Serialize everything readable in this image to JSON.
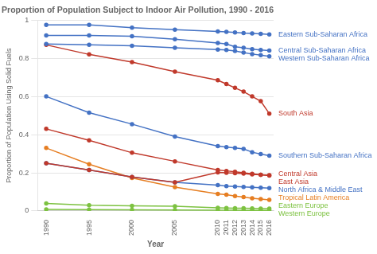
{
  "chart_data": {
    "type": "line",
    "title": "Proportion of Population Subject to Indoor Air Pollution, 1990 - 2016",
    "xlabel": "Year",
    "ylabel": "Proportion of Population Using Solid Fuels",
    "x": [
      1990,
      1995,
      2000,
      2005,
      2010,
      2011,
      2012,
      2013,
      2014,
      2015,
      2016
    ],
    "series": [
      {
        "name": "Eastern Sub-Saharan Africa",
        "color": "#4472C4",
        "values": [
          0.975,
          0.975,
          0.96,
          0.95,
          0.94,
          0.938,
          0.935,
          0.932,
          0.93,
          0.928,
          0.925
        ]
      },
      {
        "name": "Central Sub-Saharan Africa",
        "color": "#4472C4",
        "values": [
          0.92,
          0.92,
          0.915,
          0.9,
          0.88,
          0.875,
          0.86,
          0.855,
          0.848,
          0.843,
          0.84
        ]
      },
      {
        "name": "Western Sub-Saharan Africa",
        "color": "#4472C4",
        "values": [
          0.875,
          0.87,
          0.865,
          0.855,
          0.845,
          0.843,
          0.838,
          0.83,
          0.822,
          0.816,
          0.81
        ]
      },
      {
        "name": "South Asia",
        "color": "#C0392B",
        "values": [
          0.87,
          0.82,
          0.78,
          0.73,
          0.685,
          0.665,
          0.645,
          0.625,
          0.6,
          0.575,
          0.51
        ]
      },
      {
        "name": "East Asia",
        "color": "#C0392B",
        "values": [
          0.43,
          0.37,
          0.305,
          0.26,
          0.215,
          0.21,
          0.205,
          0.2,
          0.195,
          0.19,
          0.185
        ]
      },
      {
        "name": "Southern Sub-Saharan Africa",
        "color": "#4472C4",
        "values": [
          0.6,
          0.515,
          0.455,
          0.39,
          0.34,
          0.335,
          0.33,
          0.325,
          0.308,
          0.298,
          0.29
        ]
      },
      {
        "name": "Central Asia",
        "color": "#C0392B",
        "values": [
          0.25,
          0.215,
          0.178,
          0.15,
          0.202,
          0.2,
          0.198,
          0.196,
          0.192,
          0.19,
          0.188
        ]
      },
      {
        "name": "North Africa & Middle East",
        "color": "#4472C4",
        "values": [
          0.25,
          0.215,
          0.178,
          0.15,
          0.135,
          0.13,
          0.128,
          0.126,
          0.124,
          0.122,
          0.12
        ]
      },
      {
        "name": "Tropical Latin America",
        "color": "#E67E22",
        "values": [
          0.33,
          0.245,
          0.173,
          0.125,
          0.09,
          0.085,
          0.078,
          0.073,
          0.067,
          0.062,
          0.058
        ]
      },
      {
        "name": "Eastern Europe",
        "color": "#7DC241",
        "values": [
          0.04,
          0.03,
          0.027,
          0.025,
          0.017,
          0.016,
          0.015,
          0.014,
          0.013,
          0.012,
          0.012
        ]
      },
      {
        "name": "Western Europe",
        "color": "#7DC241",
        "values": [
          0.008,
          0.007,
          0.006,
          0.005,
          0.004,
          0.004,
          0.004,
          0.003,
          0.003,
          0.003,
          0.003
        ]
      }
    ],
    "xlim": [
      1989,
      2016.5
    ],
    "ylim": [
      0,
      1.0
    ],
    "xticks": [
      1990,
      1995,
      2000,
      2005,
      2010,
      2011,
      2012,
      2013,
      2014,
      2015,
      2016
    ],
    "yticks": [
      0,
      0.2,
      0.4,
      0.6,
      0.8,
      1.0
    ],
    "grid": true,
    "marker": "o"
  }
}
